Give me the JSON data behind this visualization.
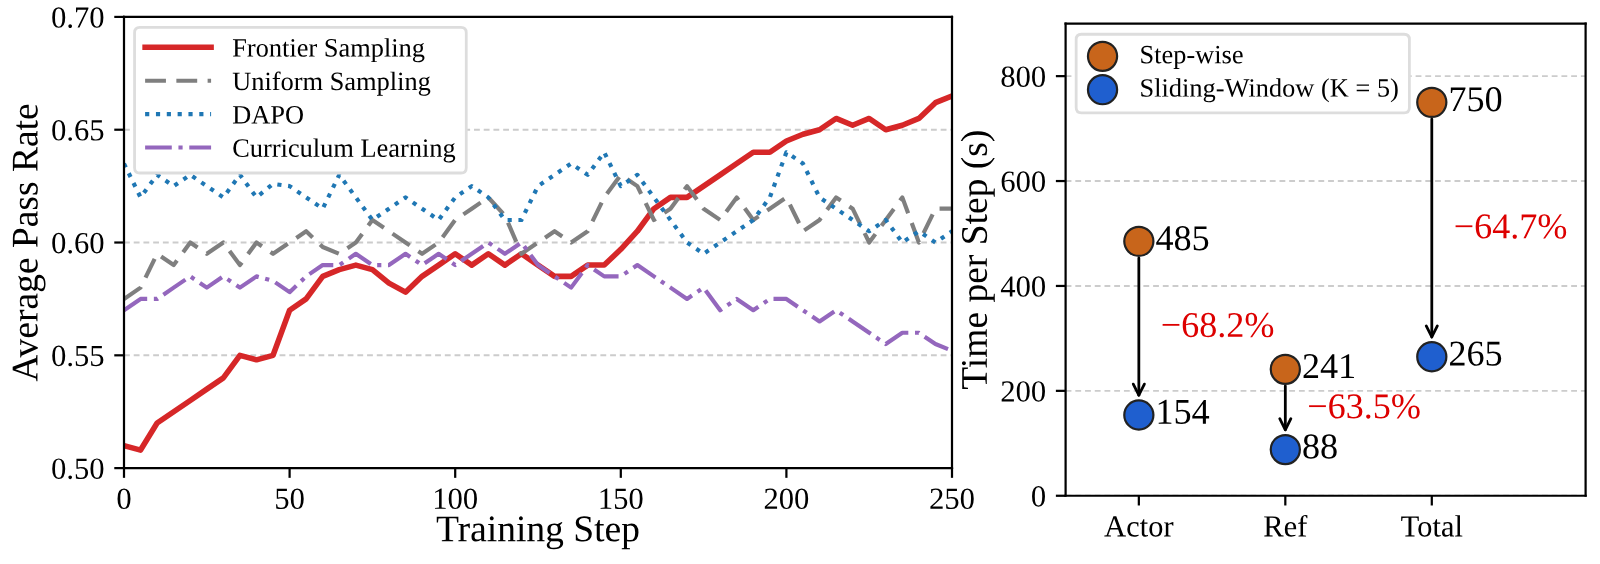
{
  "chart_data": [
    {
      "type": "line",
      "xlabel": "Training Step",
      "ylabel": "Average Pass Rate",
      "xlim": [
        0,
        250
      ],
      "ylim": [
        0.5,
        0.7
      ],
      "xticks": [
        0,
        50,
        100,
        150,
        200,
        250
      ],
      "yticks": [
        {
          "value": 0.5,
          "label": "0.50"
        },
        {
          "value": 0.55,
          "label": "0.55"
        },
        {
          "value": 0.6,
          "label": "0.60"
        },
        {
          "value": 0.65,
          "label": "0.65"
        },
        {
          "value": 0.7,
          "label": "0.70"
        }
      ],
      "grid": "y",
      "legend": "top left",
      "x": [
        0,
        5,
        10,
        15,
        20,
        25,
        30,
        35,
        40,
        45,
        50,
        55,
        60,
        65,
        70,
        75,
        80,
        85,
        90,
        95,
        100,
        105,
        110,
        115,
        120,
        125,
        130,
        135,
        140,
        145,
        150,
        155,
        160,
        165,
        170,
        175,
        180,
        185,
        190,
        195,
        200,
        205,
        210,
        215,
        220,
        225,
        230,
        235,
        240,
        245,
        250
      ],
      "series": [
        {
          "name": "Frontier Sampling",
          "color": "#d62728",
          "line_style": "solid",
          "values": [
            0.51,
            0.508,
            0.52,
            0.525,
            0.53,
            0.535,
            0.54,
            0.55,
            0.548,
            0.55,
            0.57,
            0.575,
            0.585,
            0.588,
            0.59,
            0.588,
            0.582,
            0.578,
            0.585,
            0.59,
            0.595,
            0.59,
            0.595,
            0.59,
            0.595,
            0.59,
            0.585,
            0.585,
            0.59,
            0.59,
            0.597,
            0.605,
            0.615,
            0.62,
            0.62,
            0.625,
            0.63,
            0.635,
            0.64,
            0.64,
            0.645,
            0.648,
            0.65,
            0.655,
            0.652,
            0.655,
            0.65,
            0.652,
            0.655,
            0.662,
            0.665
          ]
        },
        {
          "name": "Uniform Sampling",
          "color": "#7f7f7f",
          "line_style": "dashed",
          "values": [
            0.575,
            0.58,
            0.595,
            0.59,
            0.6,
            0.595,
            0.6,
            0.59,
            0.6,
            0.595,
            0.6,
            0.605,
            0.598,
            0.595,
            0.6,
            0.61,
            0.605,
            0.6,
            0.595,
            0.6,
            0.61,
            0.615,
            0.62,
            0.612,
            0.595,
            0.6,
            0.605,
            0.6,
            0.605,
            0.62,
            0.63,
            0.625,
            0.61,
            0.615,
            0.625,
            0.615,
            0.61,
            0.62,
            0.61,
            0.615,
            0.62,
            0.605,
            0.61,
            0.62,
            0.615,
            0.6,
            0.61,
            0.62,
            0.6,
            0.615,
            0.615
          ]
        },
        {
          "name": "DAPO",
          "color": "#1f77b4",
          "line_style": "dotted",
          "values": [
            0.635,
            0.62,
            0.63,
            0.625,
            0.63,
            0.625,
            0.62,
            0.63,
            0.62,
            0.626,
            0.625,
            0.62,
            0.615,
            0.63,
            0.62,
            0.61,
            0.615,
            0.62,
            0.615,
            0.61,
            0.62,
            0.625,
            0.62,
            0.61,
            0.61,
            0.625,
            0.63,
            0.635,
            0.63,
            0.64,
            0.625,
            0.63,
            0.62,
            0.61,
            0.6,
            0.595,
            0.6,
            0.605,
            0.61,
            0.62,
            0.64,
            0.635,
            0.62,
            0.615,
            0.61,
            0.605,
            0.61,
            0.6,
            0.605,
            0.6,
            0.605
          ]
        },
        {
          "name": "Curriculum Learning",
          "color": "#9467bd",
          "line_style": "dashdot",
          "values": [
            0.57,
            0.575,
            0.575,
            0.58,
            0.585,
            0.58,
            0.585,
            0.58,
            0.585,
            0.583,
            0.578,
            0.585,
            0.59,
            0.59,
            0.595,
            0.59,
            0.59,
            0.595,
            0.59,
            0.595,
            0.59,
            0.595,
            0.6,
            0.595,
            0.6,
            0.59,
            0.585,
            0.58,
            0.59,
            0.585,
            0.585,
            0.59,
            0.585,
            0.58,
            0.575,
            0.58,
            0.57,
            0.575,
            0.57,
            0.575,
            0.575,
            0.57,
            0.565,
            0.57,
            0.565,
            0.56,
            0.555,
            0.56,
            0.56,
            0.555,
            0.552
          ]
        }
      ]
    },
    {
      "type": "scatter",
      "categories": [
        "Actor",
        "Ref",
        "Total"
      ],
      "ylabel": "Time per Step (s)",
      "ylim": [
        0,
        900
      ],
      "yticks": [
        0,
        200,
        400,
        600,
        800
      ],
      "grid": "y",
      "legend": "top left",
      "marker": "circle",
      "data_labels": true,
      "series": [
        {
          "name": "Step-wise",
          "color": "#c8651b",
          "values": [
            485,
            241,
            750
          ]
        },
        {
          "name": "Sliding-Window (K = 5)",
          "color": "#1f5fcf",
          "values": [
            154,
            88,
            265
          ]
        }
      ],
      "annotations": [
        "−68.2%",
        "−63.5%",
        "−64.7%"
      ]
    }
  ]
}
